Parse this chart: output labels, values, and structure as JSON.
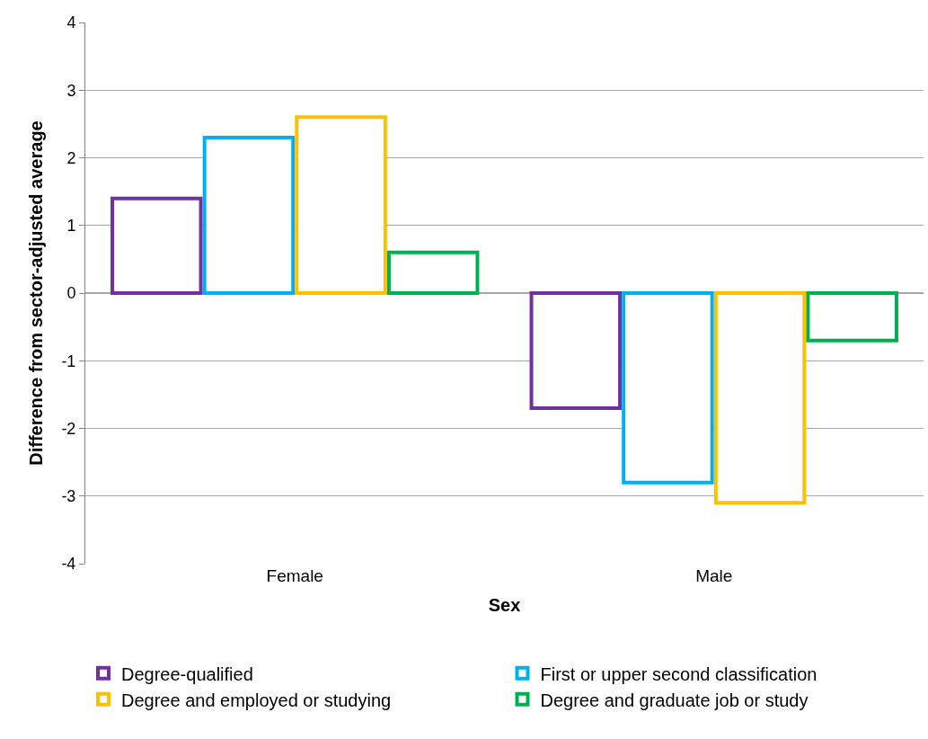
{
  "chart_data": {
    "type": "bar",
    "xlabel": "Sex",
    "ylabel": "Difference from sector-adjusted average",
    "categories": [
      "Female",
      "Male"
    ],
    "series": [
      {
        "name": "Degree-qualified",
        "color": "#7030a0",
        "values": [
          1.4,
          -1.7
        ]
      },
      {
        "name": "First or upper second classification",
        "color": "#00b0f0",
        "values": [
          2.3,
          -2.8
        ]
      },
      {
        "name": "Degree and employed or studying",
        "color": "#ffc000",
        "values": [
          2.6,
          -3.1
        ]
      },
      {
        "name": "Degree and graduate job or study",
        "color": "#00b050",
        "values": [
          0.6,
          -0.7
        ]
      }
    ],
    "ylim": [
      -4,
      4
    ],
    "yticks": [
      -4,
      -3,
      -2,
      -1,
      0,
      1,
      2,
      3,
      4
    ],
    "grid": "y",
    "legend": "bottom"
  }
}
